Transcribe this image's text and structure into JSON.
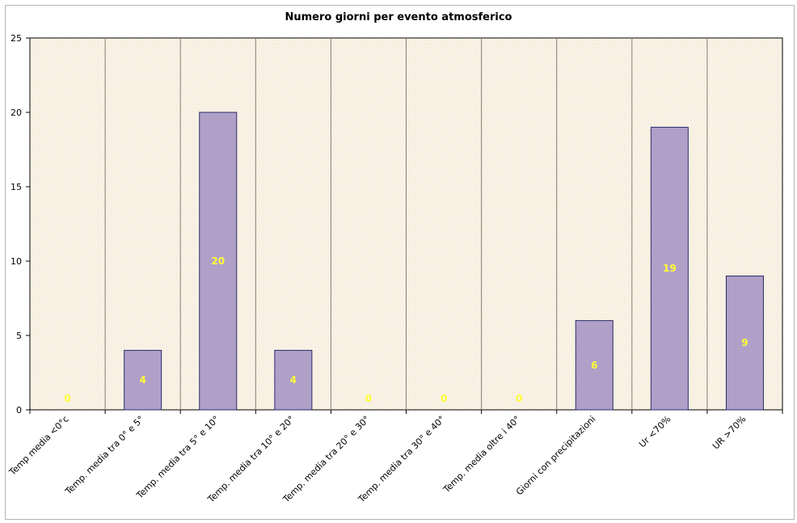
{
  "chart_data": {
    "type": "bar",
    "title": "Numero giorni per evento atmosferico",
    "xlabel": "",
    "ylabel": "",
    "ylim": [
      0,
      25
    ],
    "y_ticks": [
      "0",
      "5",
      "10",
      "15",
      "20",
      "25"
    ],
    "grid": "vertical separators between categories",
    "legend": "none",
    "categories": [
      "Temp media <0°c",
      "Temp. media tra 0° e 5°",
      "Temp. media tra 5° e 10°",
      "Temp. media tra 10° e 20°",
      "Temp. media tra 20° e 30°",
      "Temp. media tra 30° e 40°",
      "Temp. media oltre i 40°",
      "Giorni con precipitazioni",
      "Ur <70%",
      "UR >70%"
    ],
    "values": [
      0,
      4,
      20,
      4,
      0,
      0,
      0,
      6,
      19,
      9
    ],
    "data_labels": [
      "0",
      "4",
      "20",
      "4",
      "0",
      "0",
      "0",
      "6",
      "19",
      "9"
    ],
    "colors": {
      "bar_fill": "#b0a0c8",
      "bar_stroke": "#2a2a6a",
      "plot_bg": "#fbf5ea",
      "hatch": "#eadcc4",
      "label": "#ffff33",
      "separator": "#8c7a72"
    }
  }
}
